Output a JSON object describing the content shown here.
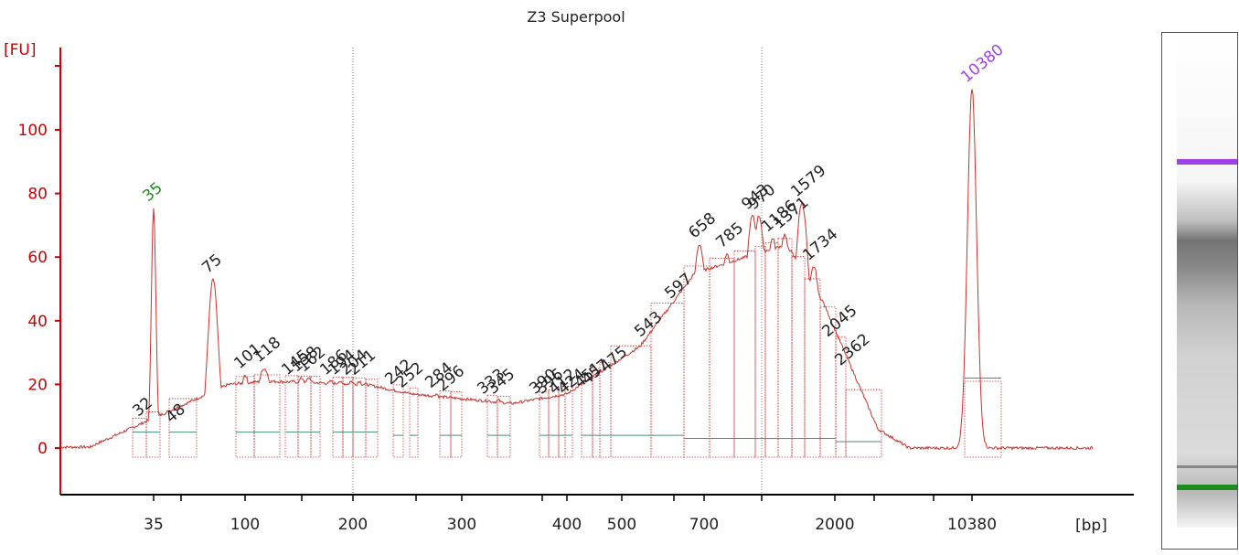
{
  "chart_data": {
    "type": "line",
    "title": "Z3 Superpool",
    "ylabel": "[FU]",
    "xlabel": "[bp]",
    "ylim": [
      -15,
      120
    ],
    "yticks": [
      0,
      20,
      40,
      60,
      80,
      100
    ],
    "xticks": [
      "35",
      "100",
      "200",
      "300",
      "400",
      "500",
      "700",
      "2000",
      "10380"
    ],
    "lower_marker": {
      "size": "35",
      "height": 75
    },
    "upper_marker": {
      "size": "10380",
      "height": 113
    },
    "peaks": [
      {
        "label": "32",
        "height": 8
      },
      {
        "label": "48",
        "height": 6
      },
      {
        "label": "75",
        "height": 53
      },
      {
        "label": "101",
        "height": 23
      },
      {
        "label": "118",
        "height": 25
      },
      {
        "label": "145",
        "height": 21
      },
      {
        "label": "158",
        "height": 22
      },
      {
        "label": "162",
        "height": 22
      },
      {
        "label": "186",
        "height": 21
      },
      {
        "label": "194",
        "height": 21
      },
      {
        "label": "204",
        "height": 21
      },
      {
        "label": "211",
        "height": 21
      },
      {
        "label": "242",
        "height": 18
      },
      {
        "label": "252",
        "height": 17
      },
      {
        "label": "284",
        "height": 17
      },
      {
        "label": "296",
        "height": 16
      },
      {
        "label": "333",
        "height": 15
      },
      {
        "label": "345",
        "height": 15
      },
      {
        "label": "390",
        "height": 15
      },
      {
        "label": "396",
        "height": 15
      },
      {
        "label": "412",
        "height": 15
      },
      {
        "label": "424",
        "height": 15
      },
      {
        "label": "451",
        "height": 17
      },
      {
        "label": "457",
        "height": 18
      },
      {
        "label": "475",
        "height": 22
      },
      {
        "label": "543",
        "height": 33
      },
      {
        "label": "597",
        "height": 45
      },
      {
        "label": "658",
        "height": 64
      },
      {
        "label": "785",
        "height": 61
      },
      {
        "label": "943",
        "height": 73
      },
      {
        "label": "970",
        "height": 73
      },
      {
        "label": "1186",
        "height": 66
      },
      {
        "label": "1371",
        "height": 67
      },
      {
        "label": "1579",
        "height": 77
      },
      {
        "label": "1734",
        "height": 57
      },
      {
        "label": "2045",
        "height": 33
      },
      {
        "label": "2362",
        "height": 24
      }
    ]
  },
  "colors": {
    "trace": "#c8322d",
    "axis": "#cc0000",
    "lower_marker": "#1e8c1e",
    "upper_marker": "#a040e8",
    "peak_label": "#222222",
    "baseline": "#4a8c7a"
  }
}
